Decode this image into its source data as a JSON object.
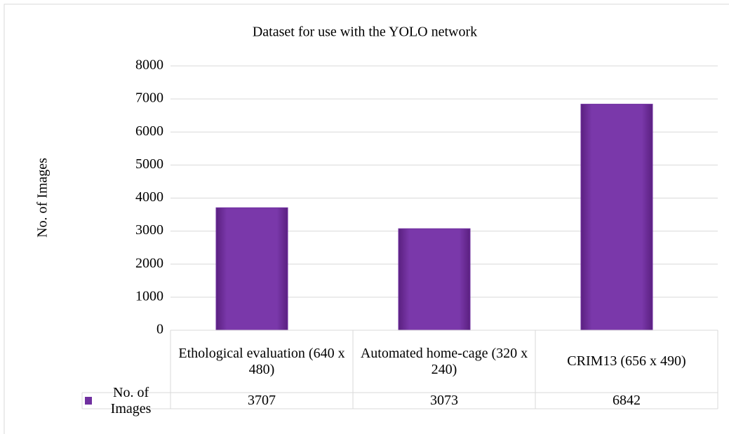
{
  "chart_data": {
    "type": "bar",
    "title": "Dataset for use with the YOLO network",
    "ylabel": "No. of Images",
    "categories": [
      "Ethological evaluation (640 x 480)",
      "Automated home-cage (320 x 240)",
      "CRIM13 (656 x 490)"
    ],
    "series": [
      {
        "name": "No. of Images",
        "color": "#7030a0",
        "values": [
          3707,
          3073,
          6842
        ]
      }
    ],
    "ylim": [
      0,
      8000
    ],
    "yticks": [
      0,
      1000,
      2000,
      3000,
      4000,
      5000,
      6000,
      7000,
      8000
    ],
    "grid": true,
    "data_table": true
  }
}
